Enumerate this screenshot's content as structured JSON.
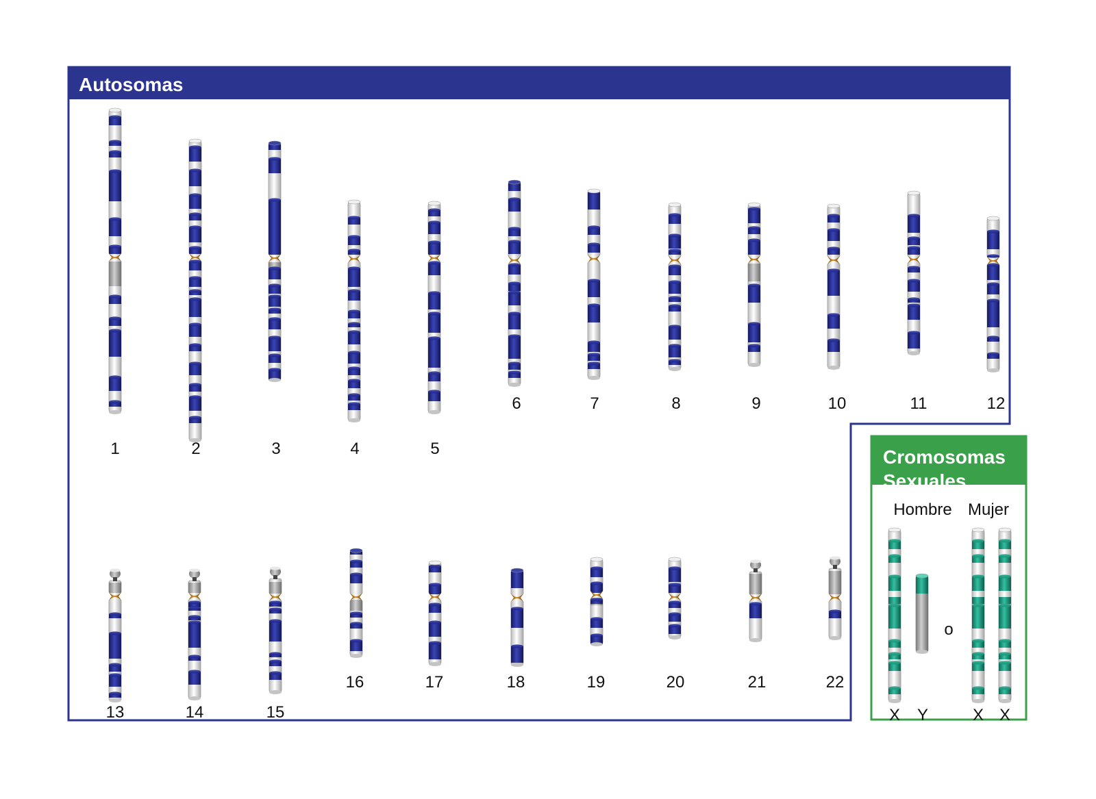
{
  "colors": {
    "frame": "#2b3590",
    "band": "#262e96",
    "centromere": "#b8781c",
    "heterochromatin": "#a8a8a8",
    "sex_frame": "#3aa14a",
    "sex_band": "#1e9c80"
  },
  "autosomes": {
    "title": "Autosomas",
    "chromosomes": [
      {
        "label": "1"
      },
      {
        "label": "2"
      },
      {
        "label": "3"
      },
      {
        "label": "4"
      },
      {
        "label": "5"
      },
      {
        "label": "6"
      },
      {
        "label": "7"
      },
      {
        "label": "8"
      },
      {
        "label": "9"
      },
      {
        "label": "10"
      },
      {
        "label": "11"
      },
      {
        "label": "12"
      },
      {
        "label": "13"
      },
      {
        "label": "14"
      },
      {
        "label": "15"
      },
      {
        "label": "16"
      },
      {
        "label": "17"
      },
      {
        "label": "18"
      },
      {
        "label": "19"
      },
      {
        "label": "20"
      },
      {
        "label": "21"
      },
      {
        "label": "22"
      }
    ]
  },
  "sex_chromosomes": {
    "title_line1": "Cromosomas",
    "title_line2": "Sexuales",
    "male_label": "Hombre",
    "female_label": "Mujer",
    "or_label": "o",
    "male": [
      "X",
      "Y"
    ],
    "female": [
      "X",
      "X"
    ]
  }
}
